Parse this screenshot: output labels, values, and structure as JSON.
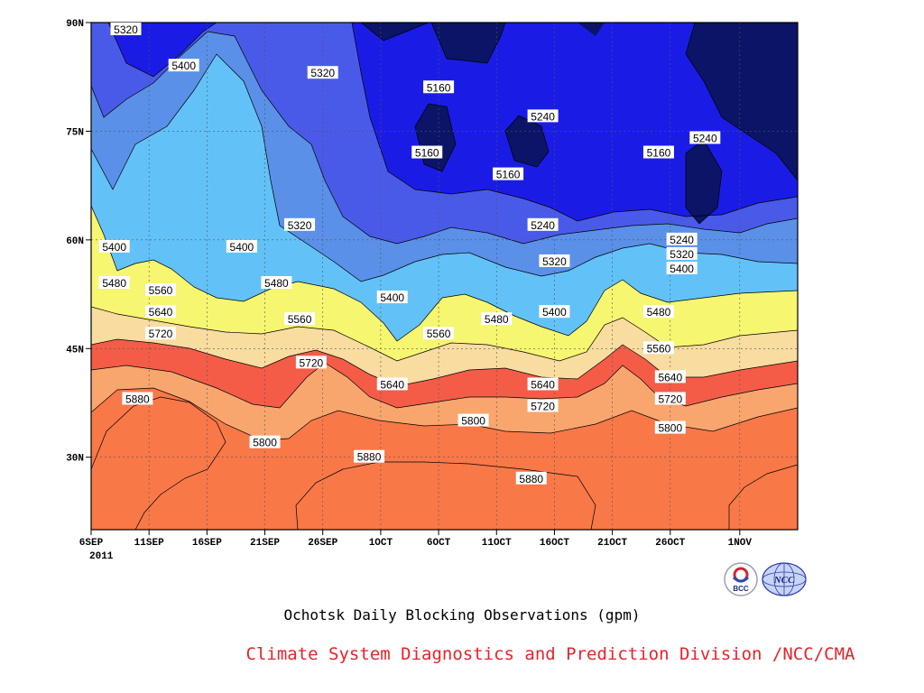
{
  "title": "Ochotsk Daily Blocking Observations (gpm)",
  "credit": "Climate System Diagnostics and Prediction Division /NCC/CMA",
  "logos": [
    {
      "name": "bcc-logo",
      "text": "BCC"
    },
    {
      "name": "ncc-logo",
      "text": "NCC"
    }
  ],
  "chart_data": {
    "type": "contour",
    "title": "Ochotsk Daily Blocking Observations (gpm)",
    "x": {
      "ticks": [
        "6SEP",
        "11SEP",
        "16SEP",
        "21SEP",
        "26SEP",
        "1OCT",
        "6OCT",
        "11OCT",
        "16OCT",
        "21OCT",
        "26OCT",
        "1NOV"
      ],
      "sub_label": "2011",
      "range": [
        "6SEP 2011",
        "5NOV 2011"
      ]
    },
    "y": {
      "ticks": [
        "30N",
        "45N",
        "60N",
        "75N",
        "90N"
      ],
      "tick_values": [
        30,
        45,
        60,
        75,
        90
      ],
      "range": [
        20,
        90
      ],
      "unit": "latitude"
    },
    "levels": [
      5160,
      5240,
      5320,
      5400,
      5480,
      5560,
      5640,
      5720,
      5800,
      5880
    ],
    "colors": [
      "#0b1466",
      "#1a1ce6",
      "#4a5ae8",
      "#5a90e8",
      "#62c2f8",
      "#f6f670",
      "#f8dca0",
      "#f8a66e",
      "#f87848",
      "#f87078",
      "#f03a48"
    ],
    "grid": true,
    "labels": [
      {
        "text": "5320",
        "x": "9SEP",
        "lat": 89
      },
      {
        "text": "5400",
        "x": "14SEP",
        "lat": 84
      },
      {
        "text": "5320",
        "x": "26SEP",
        "lat": 83
      },
      {
        "text": "5160",
        "x": "6OCT",
        "lat": 81
      },
      {
        "text": "5240",
        "x": "15OCT",
        "lat": 77
      },
      {
        "text": "5160",
        "x": "5OCT",
        "lat": 72
      },
      {
        "text": "5160",
        "x": "12OCT",
        "lat": 69
      },
      {
        "text": "5240",
        "x": "29OCT",
        "lat": 74
      },
      {
        "text": "5160",
        "x": "25OCT",
        "lat": 72
      },
      {
        "text": "5320",
        "x": "24SEP",
        "lat": 62
      },
      {
        "text": "5240",
        "x": "15OCT",
        "lat": 62
      },
      {
        "text": "5240",
        "x": "27OCT",
        "lat": 60
      },
      {
        "text": "5320",
        "x": "27OCT",
        "lat": 58
      },
      {
        "text": "5400",
        "x": "27OCT",
        "lat": 56
      },
      {
        "text": "5400",
        "x": "8SEP",
        "lat": 59
      },
      {
        "text": "5400",
        "x": "19SEP",
        "lat": 59
      },
      {
        "text": "5480",
        "x": "8SEP",
        "lat": 54
      },
      {
        "text": "5560",
        "x": "12SEP",
        "lat": 53
      },
      {
        "text": "5480",
        "x": "22SEP",
        "lat": 54
      },
      {
        "text": "5560",
        "x": "24SEP",
        "lat": 49
      },
      {
        "text": "5400",
        "x": "2OCT",
        "lat": 52
      },
      {
        "text": "5320",
        "x": "16OCT",
        "lat": 57
      },
      {
        "text": "5480",
        "x": "11OCT",
        "lat": 49
      },
      {
        "text": "5400",
        "x": "16OCT",
        "lat": 50
      },
      {
        "text": "5480",
        "x": "25OCT",
        "lat": 50
      },
      {
        "text": "5640",
        "x": "12SEP",
        "lat": 50
      },
      {
        "text": "5560",
        "x": "6OCT",
        "lat": 47
      },
      {
        "text": "5720",
        "x": "12SEP",
        "lat": 47
      },
      {
        "text": "5560",
        "x": "25OCT",
        "lat": 45
      },
      {
        "text": "5720",
        "x": "25SEP",
        "lat": 43
      },
      {
        "text": "5640",
        "x": "26OCT",
        "lat": 41
      },
      {
        "text": "5640",
        "x": "2OCT",
        "lat": 40
      },
      {
        "text": "5640",
        "x": "15OCT",
        "lat": 40
      },
      {
        "text": "5880",
        "x": "10SEP",
        "lat": 38
      },
      {
        "text": "5720",
        "x": "15OCT",
        "lat": 37
      },
      {
        "text": "5720",
        "x": "26OCT",
        "lat": 38
      },
      {
        "text": "5800",
        "x": "9OCT",
        "lat": 35
      },
      {
        "text": "5800",
        "x": "26OCT",
        "lat": 34
      },
      {
        "text": "5800",
        "x": "21SEP",
        "lat": 32
      },
      {
        "text": "5880",
        "x": "30SEP",
        "lat": 30
      },
      {
        "text": "5880",
        "x": "14OCT",
        "lat": 27
      }
    ]
  }
}
